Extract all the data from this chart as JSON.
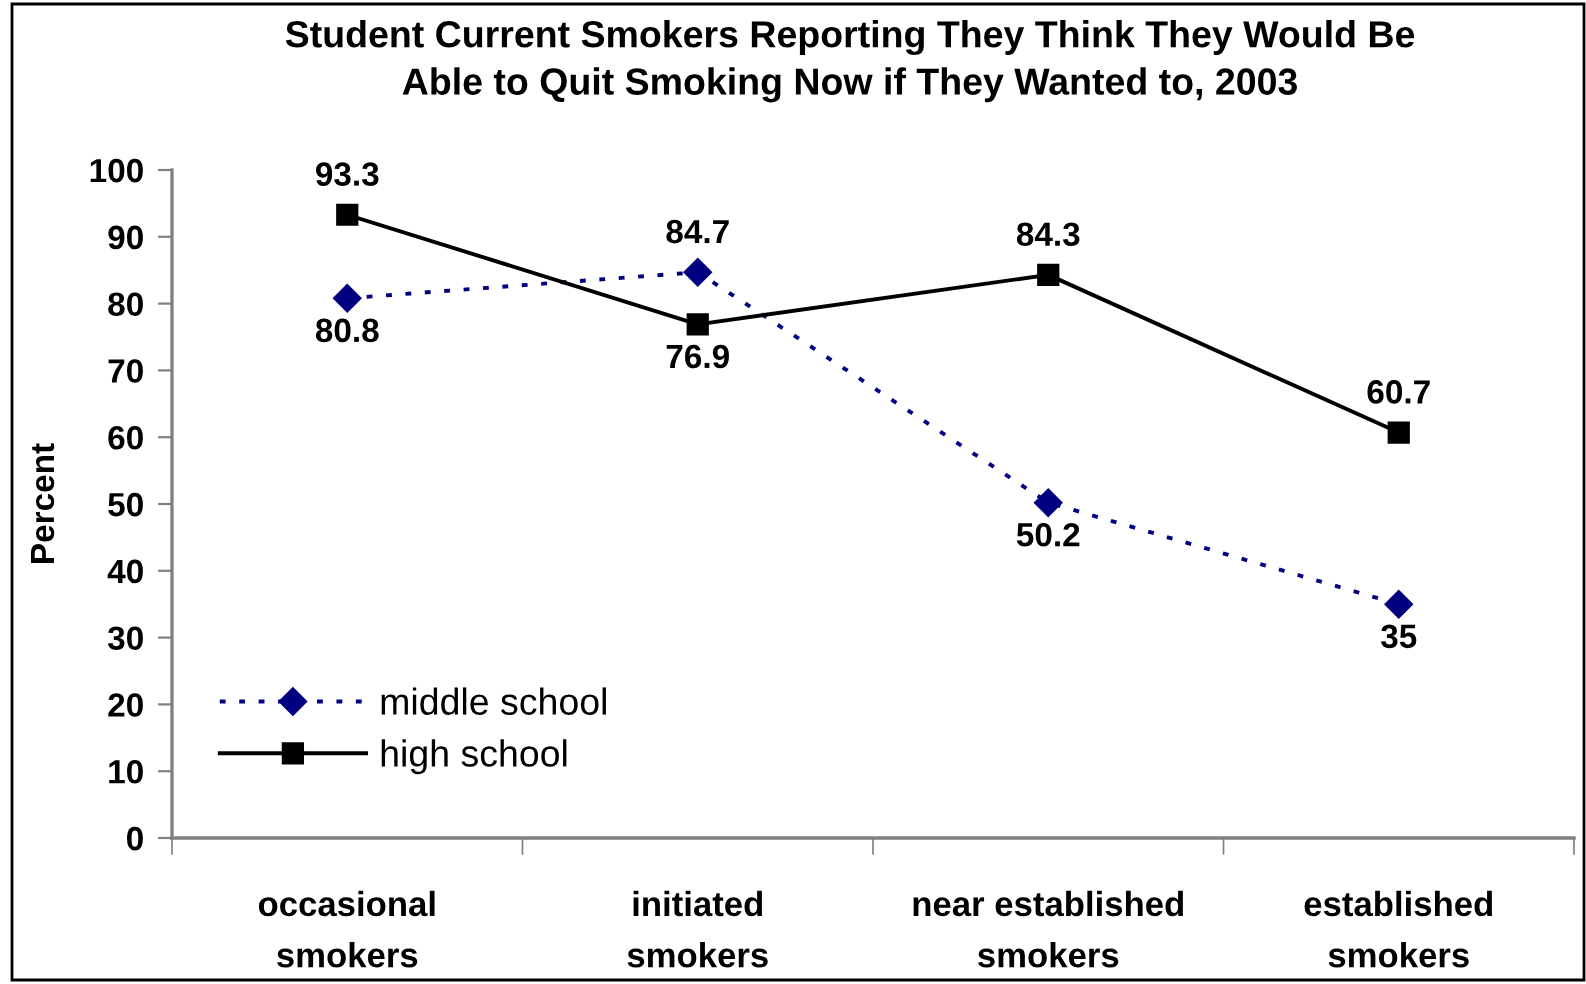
{
  "chart_data": {
    "type": "line",
    "title": "Student Current Smokers Reporting They Think They Would Be\nAble to Quit Smoking Now if They Wanted to, 2003",
    "ylabel": "Percent",
    "categories": [
      "occasional\nsmokers",
      "initiated\nsmokers",
      "near established\nsmokers",
      "established\nsmokers"
    ],
    "series": [
      {
        "name": "middle school",
        "color": "#000080",
        "values": [
          80.8,
          84.7,
          50.2,
          35
        ],
        "marker": "diamond",
        "line_style": "dotted"
      },
      {
        "name": "high school",
        "color": "#000000",
        "values": [
          93.3,
          76.9,
          84.3,
          60.7
        ],
        "marker": "square",
        "line_style": "solid"
      }
    ],
    "ylim": [
      0,
      100
    ],
    "yticks": [
      0,
      10,
      20,
      30,
      40,
      50,
      60,
      70,
      80,
      90,
      100
    ],
    "data_labels": true,
    "legend": "bottom left"
  }
}
